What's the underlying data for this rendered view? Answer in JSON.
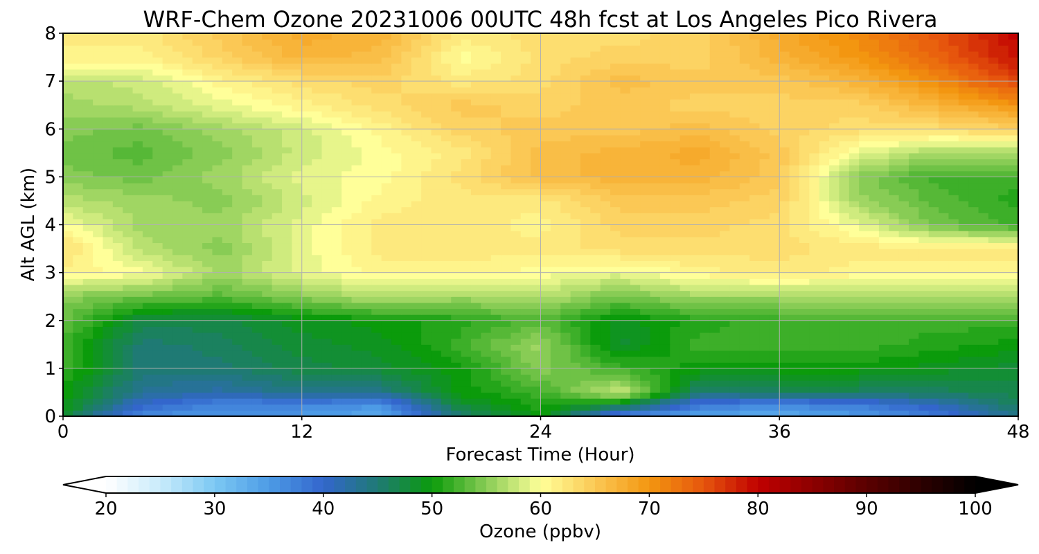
{
  "chart_data": {
    "type": "heatmap",
    "title": "WRF-Chem Ozone  20231006 00UTC 48h fcst at Los Angeles Pico Rivera",
    "xlabel": "Forecast Time (Hour)",
    "ylabel": "Alt AGL (km)",
    "xlim": [
      0,
      48
    ],
    "ylim": [
      0,
      8
    ],
    "xticks": [
      0,
      12,
      24,
      36,
      48
    ],
    "yticks": [
      0,
      1,
      2,
      3,
      4,
      5,
      6,
      7,
      8
    ],
    "grid": true,
    "x": [
      0,
      4,
      8,
      12,
      16,
      20,
      24,
      28,
      32,
      36,
      40,
      44,
      48
    ],
    "y": [
      0,
      0.25,
      0.5,
      1,
      1.5,
      2,
      2.5,
      3,
      3.5,
      4,
      4.5,
      5,
      5.5,
      6,
      6.5,
      7,
      7.5,
      8
    ],
    "z": [
      [
        48,
        36,
        35,
        35,
        33,
        45,
        50,
        36,
        34,
        33,
        35,
        38,
        44
      ],
      [
        50,
        40,
        37,
        37,
        36,
        48,
        51,
        48,
        38,
        37,
        38,
        41,
        46
      ],
      [
        50,
        43,
        42,
        44,
        44,
        50,
        52,
        58,
        45,
        46,
        46,
        46,
        47
      ],
      [
        52,
        45,
        45,
        47,
        48,
        50,
        55,
        52,
        50,
        50,
        50,
        49,
        48
      ],
      [
        52,
        45,
        46,
        48,
        49,
        52,
        56,
        48,
        52,
        52,
        52,
        51,
        50
      ],
      [
        54,
        47,
        47,
        49,
        50,
        51,
        53,
        49,
        51,
        52,
        52,
        52,
        52
      ],
      [
        55,
        54,
        53,
        55,
        57,
        56,
        57,
        54,
        56,
        56,
        56,
        56,
        57
      ],
      [
        61,
        60,
        56,
        59,
        61,
        61,
        60,
        59,
        61,
        62,
        61,
        61,
        61
      ],
      [
        63,
        57,
        55,
        59,
        62,
        62,
        62,
        63,
        63,
        63,
        62,
        62,
        62
      ],
      [
        60,
        56,
        56,
        59,
        62,
        62,
        61,
        64,
        64,
        63,
        59,
        54,
        52
      ],
      [
        57,
        56,
        55,
        58,
        61,
        62,
        62,
        65,
        65,
        64,
        56,
        53,
        51
      ],
      [
        55,
        54,
        56,
        59,
        60,
        63,
        66,
        67,
        67,
        65,
        55,
        52,
        52
      ],
      [
        54,
        53,
        55,
        58,
        60,
        62,
        66,
        67,
        68,
        65,
        59,
        56,
        56
      ],
      [
        55,
        54,
        56,
        58,
        61,
        64,
        65,
        65,
        66,
        64,
        63,
        63,
        64
      ],
      [
        56,
        57,
        59,
        61,
        63,
        65,
        64,
        65,
        64,
        64,
        64,
        67,
        70
      ],
      [
        57,
        58,
        61,
        63,
        64,
        62,
        63,
        66,
        65,
        65,
        67,
        71,
        76
      ],
      [
        61,
        61,
        64,
        67,
        66,
        60,
        63,
        64,
        64,
        67,
        70,
        74,
        79
      ],
      [
        62,
        62,
        65,
        68,
        67,
        62,
        63,
        63,
        64,
        68,
        71,
        75,
        80
      ]
    ],
    "colorbar": {
      "label": "Ozone  (ppbv)",
      "min": 20,
      "max": 100,
      "ticks": [
        20,
        30,
        40,
        50,
        60,
        70,
        80,
        90,
        100
      ],
      "extend": "both",
      "colors": [
        {
          "v": 20,
          "c": "#ffffff"
        },
        {
          "v": 25,
          "c": "#c9ebfb"
        },
        {
          "v": 30,
          "c": "#7cc9f3"
        },
        {
          "v": 35,
          "c": "#4d9be6"
        },
        {
          "v": 40,
          "c": "#3366cc"
        },
        {
          "v": 45,
          "c": "#1f7a74"
        },
        {
          "v": 50,
          "c": "#0b9b0b"
        },
        {
          "v": 55,
          "c": "#88cc55"
        },
        {
          "v": 60,
          "c": "#ffff99"
        },
        {
          "v": 65,
          "c": "#fbc855"
        },
        {
          "v": 70,
          "c": "#f39610"
        },
        {
          "v": 75,
          "c": "#e6550d"
        },
        {
          "v": 80,
          "c": "#c00000"
        },
        {
          "v": 90,
          "c": "#5a0000"
        },
        {
          "v": 100,
          "c": "#000000"
        }
      ]
    }
  }
}
